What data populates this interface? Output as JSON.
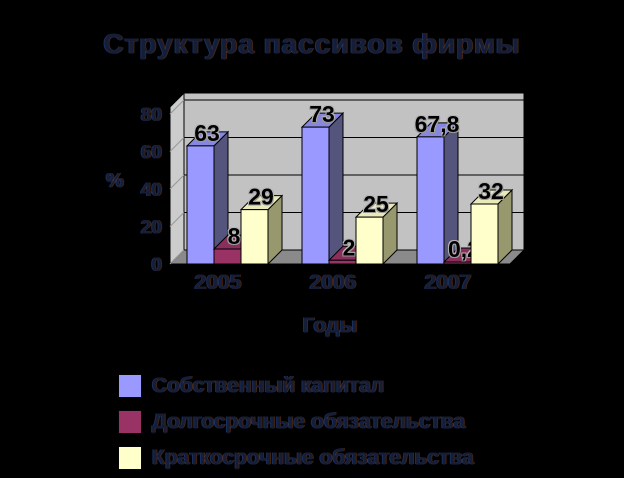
{
  "title": "Структура пассивов фирмы",
  "chart_data": {
    "type": "bar",
    "style": "3d-clustered-column",
    "title": "Структура пассивов фирмы",
    "categories": [
      "2005",
      "2006",
      "2007"
    ],
    "series": [
      {
        "name": "Собственный капитал",
        "color": "#9999FF",
        "values": [
          63,
          73,
          67.8
        ],
        "labels": [
          "63",
          "73",
          "67,8"
        ]
      },
      {
        "name": "Долгосрочные обязательства",
        "color": "#993366",
        "values": [
          8,
          2,
          0.2
        ],
        "labels": [
          "8",
          "2",
          "0,2"
        ]
      },
      {
        "name": "Краткосрочные обязательства",
        "color": "#FFFFCC",
        "values": [
          29,
          25,
          32
        ],
        "labels": [
          "29",
          "25",
          "32"
        ]
      }
    ],
    "xlabel": "Годы",
    "ylabel": "%",
    "ylim": [
      0,
      80
    ],
    "yticks": [
      0,
      20,
      40,
      60,
      80
    ],
    "grid": true,
    "legend_position": "bottom-left",
    "background": "#000000",
    "wall_color": "#C2C2C2",
    "floor_color": "#8A8A8A"
  },
  "colors": {
    "series_tops": [
      "#8787E0",
      "#8A2E5B",
      "#E9E9BA"
    ],
    "series_sides": [
      "#54547C",
      "#5E2040",
      "#98986E"
    ]
  }
}
